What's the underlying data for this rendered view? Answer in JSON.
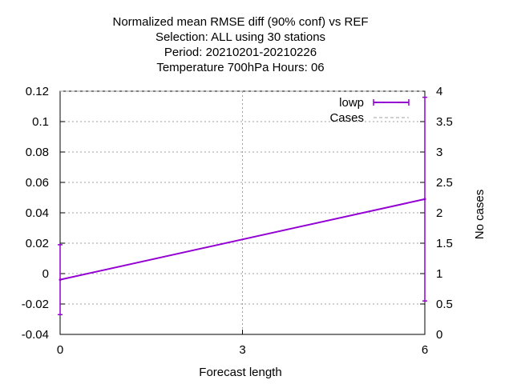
{
  "chart_data": {
    "type": "line",
    "title_lines": [
      "Normalized mean RMSE diff (90% conf) vs REF",
      "Selection: ALL using    30 stations",
      "Period: 20210201-20210226",
      "Temperature 700hPa   Hours:  06"
    ],
    "xlabel": "Forecast length",
    "ylabel": "",
    "y2label": "No cases",
    "xlim": [
      0,
      6
    ],
    "ylim": [
      -0.04,
      0.12
    ],
    "y2lim": [
      0,
      4
    ],
    "x_ticks": [
      0,
      3,
      6
    ],
    "y_ticks": [
      "-0.04",
      "-0.02",
      "0",
      "0.02",
      "0.04",
      "0.06",
      "0.08",
      "0.1",
      "0.12"
    ],
    "y2_ticks": [
      "0",
      "0.5",
      "1",
      "1.5",
      "2",
      "2.5",
      "3",
      "3.5",
      "4"
    ],
    "grid": true,
    "legend_position": "top-right",
    "series": [
      {
        "name": "lowp",
        "color": "#9400d3",
        "x": [
          0,
          6
        ],
        "y": [
          -0.004,
          0.049
        ],
        "err_low": [
          -0.027,
          -0.018
        ],
        "err_high": [
          0.019,
          0.116
        ]
      }
    ],
    "cases": {
      "name": "Cases",
      "color": "#a0a0a0",
      "x": [
        0,
        6
      ],
      "y": [
        4,
        4
      ]
    }
  }
}
